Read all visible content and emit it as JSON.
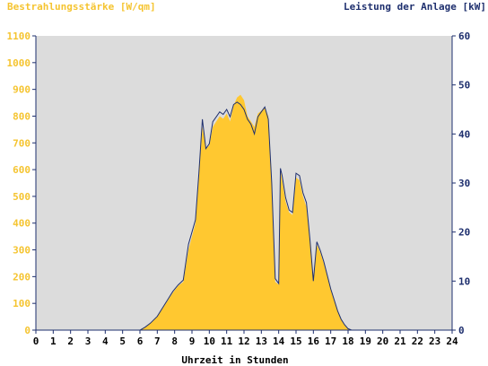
{
  "chart_data": {
    "type": "area",
    "title_left": "Bestrahlungsstärke [W/qm]",
    "title_right": "Leistung der Anlage [kW]",
    "xlabel": "Uhrzeit in Stunden",
    "xlim": [
      0,
      24
    ],
    "x_ticks": [
      "0",
      "1",
      "2",
      "3",
      "4",
      "5",
      "6",
      "7",
      "8",
      "9",
      "10",
      "11",
      "12",
      "13",
      "14",
      "15",
      "16",
      "17",
      "18",
      "19",
      "20",
      "21",
      "22",
      "23",
      "24"
    ],
    "y_left": {
      "lim": [
        0,
        1100
      ],
      "ticks": [
        "0",
        "100",
        "200",
        "300",
        "400",
        "500",
        "600",
        "700",
        "800",
        "900",
        "1000",
        "1100"
      ]
    },
    "y_right": {
      "lim": [
        0,
        60
      ],
      "ticks": [
        "0",
        "10",
        "20",
        "30",
        "40",
        "50",
        "60"
      ]
    },
    "colors": {
      "background": "#dcdcdc",
      "irradiance_fill": "#ffc830",
      "power_line": "#1e2f6e",
      "axis": "#1e2f6e",
      "left_label": "#f5c430"
    },
    "series": [
      {
        "axis": "left",
        "style": "area",
        "x": [
          0,
          6.0,
          6.3,
          6.6,
          7.0,
          7.3,
          7.6,
          7.9,
          8.2,
          8.5,
          8.8,
          9.0,
          9.2,
          9.4,
          9.6,
          9.8,
          10.0,
          10.2,
          10.4,
          10.6,
          10.8,
          11.0,
          11.2,
          11.4,
          11.6,
          11.8,
          12.0,
          12.2,
          12.4,
          12.6,
          12.8,
          13.0,
          13.2,
          13.4,
          13.6,
          13.8,
          14.0,
          14.1,
          14.2,
          14.4,
          14.6,
          14.8,
          15.0,
          15.2,
          15.4,
          15.6,
          15.8,
          16.0,
          16.2,
          16.4,
          16.6,
          16.8,
          17.0,
          17.2,
          17.4,
          17.6,
          17.8,
          18.0,
          18.2,
          18.4,
          18.6,
          18.8,
          19.0,
          24
        ],
        "y": [
          0,
          0,
          10,
          25,
          50,
          80,
          110,
          140,
          165,
          180,
          300,
          350,
          400,
          580,
          760,
          680,
          690,
          760,
          780,
          800,
          790,
          810,
          780,
          840,
          870,
          880,
          860,
          800,
          780,
          760,
          810,
          820,
          830,
          800,
          540,
          180,
          170,
          600,
          560,
          480,
          440,
          430,
          570,
          560,
          500,
          460,
          330,
          180,
          320,
          290,
          250,
          200,
          150,
          110,
          70,
          40,
          20,
          5,
          0,
          0,
          0,
          0,
          0,
          0
        ]
      },
      {
        "axis": "right",
        "style": "line",
        "x": [
          0,
          6.0,
          6.3,
          6.6,
          7.0,
          7.3,
          7.6,
          7.9,
          8.2,
          8.5,
          8.8,
          9.0,
          9.2,
          9.4,
          9.6,
          9.8,
          10.0,
          10.2,
          10.4,
          10.6,
          10.8,
          11.0,
          11.2,
          11.4,
          11.6,
          11.8,
          12.0,
          12.2,
          12.4,
          12.6,
          12.8,
          13.0,
          13.2,
          13.4,
          13.6,
          13.8,
          14.0,
          14.1,
          14.2,
          14.4,
          14.6,
          14.8,
          15.0,
          15.2,
          15.4,
          15.6,
          15.8,
          16.0,
          16.2,
          16.4,
          16.6,
          16.8,
          17.0,
          17.2,
          17.4,
          17.6,
          17.8,
          18.0,
          18.2,
          18.4,
          18.6,
          18.8,
          19.0,
          24
        ],
        "y": [
          0,
          0,
          0.6,
          1.4,
          2.8,
          4.5,
          6.2,
          7.9,
          9.2,
          10.2,
          17.5,
          20,
          22.5,
          32,
          43,
          37,
          38,
          42.5,
          43.5,
          44.5,
          44,
          45,
          43.5,
          46,
          46.5,
          46,
          45,
          43,
          42,
          40,
          43.5,
          44.5,
          45.5,
          43,
          30,
          10.5,
          9.5,
          33,
          31.5,
          27,
          24.5,
          24,
          32,
          31.5,
          28,
          26,
          18.5,
          10,
          18,
          16.2,
          14,
          11.2,
          8.4,
          6.2,
          3.9,
          2.2,
          1.1,
          0.3,
          0,
          0,
          0,
          0,
          0,
          0
        ]
      }
    ]
  }
}
